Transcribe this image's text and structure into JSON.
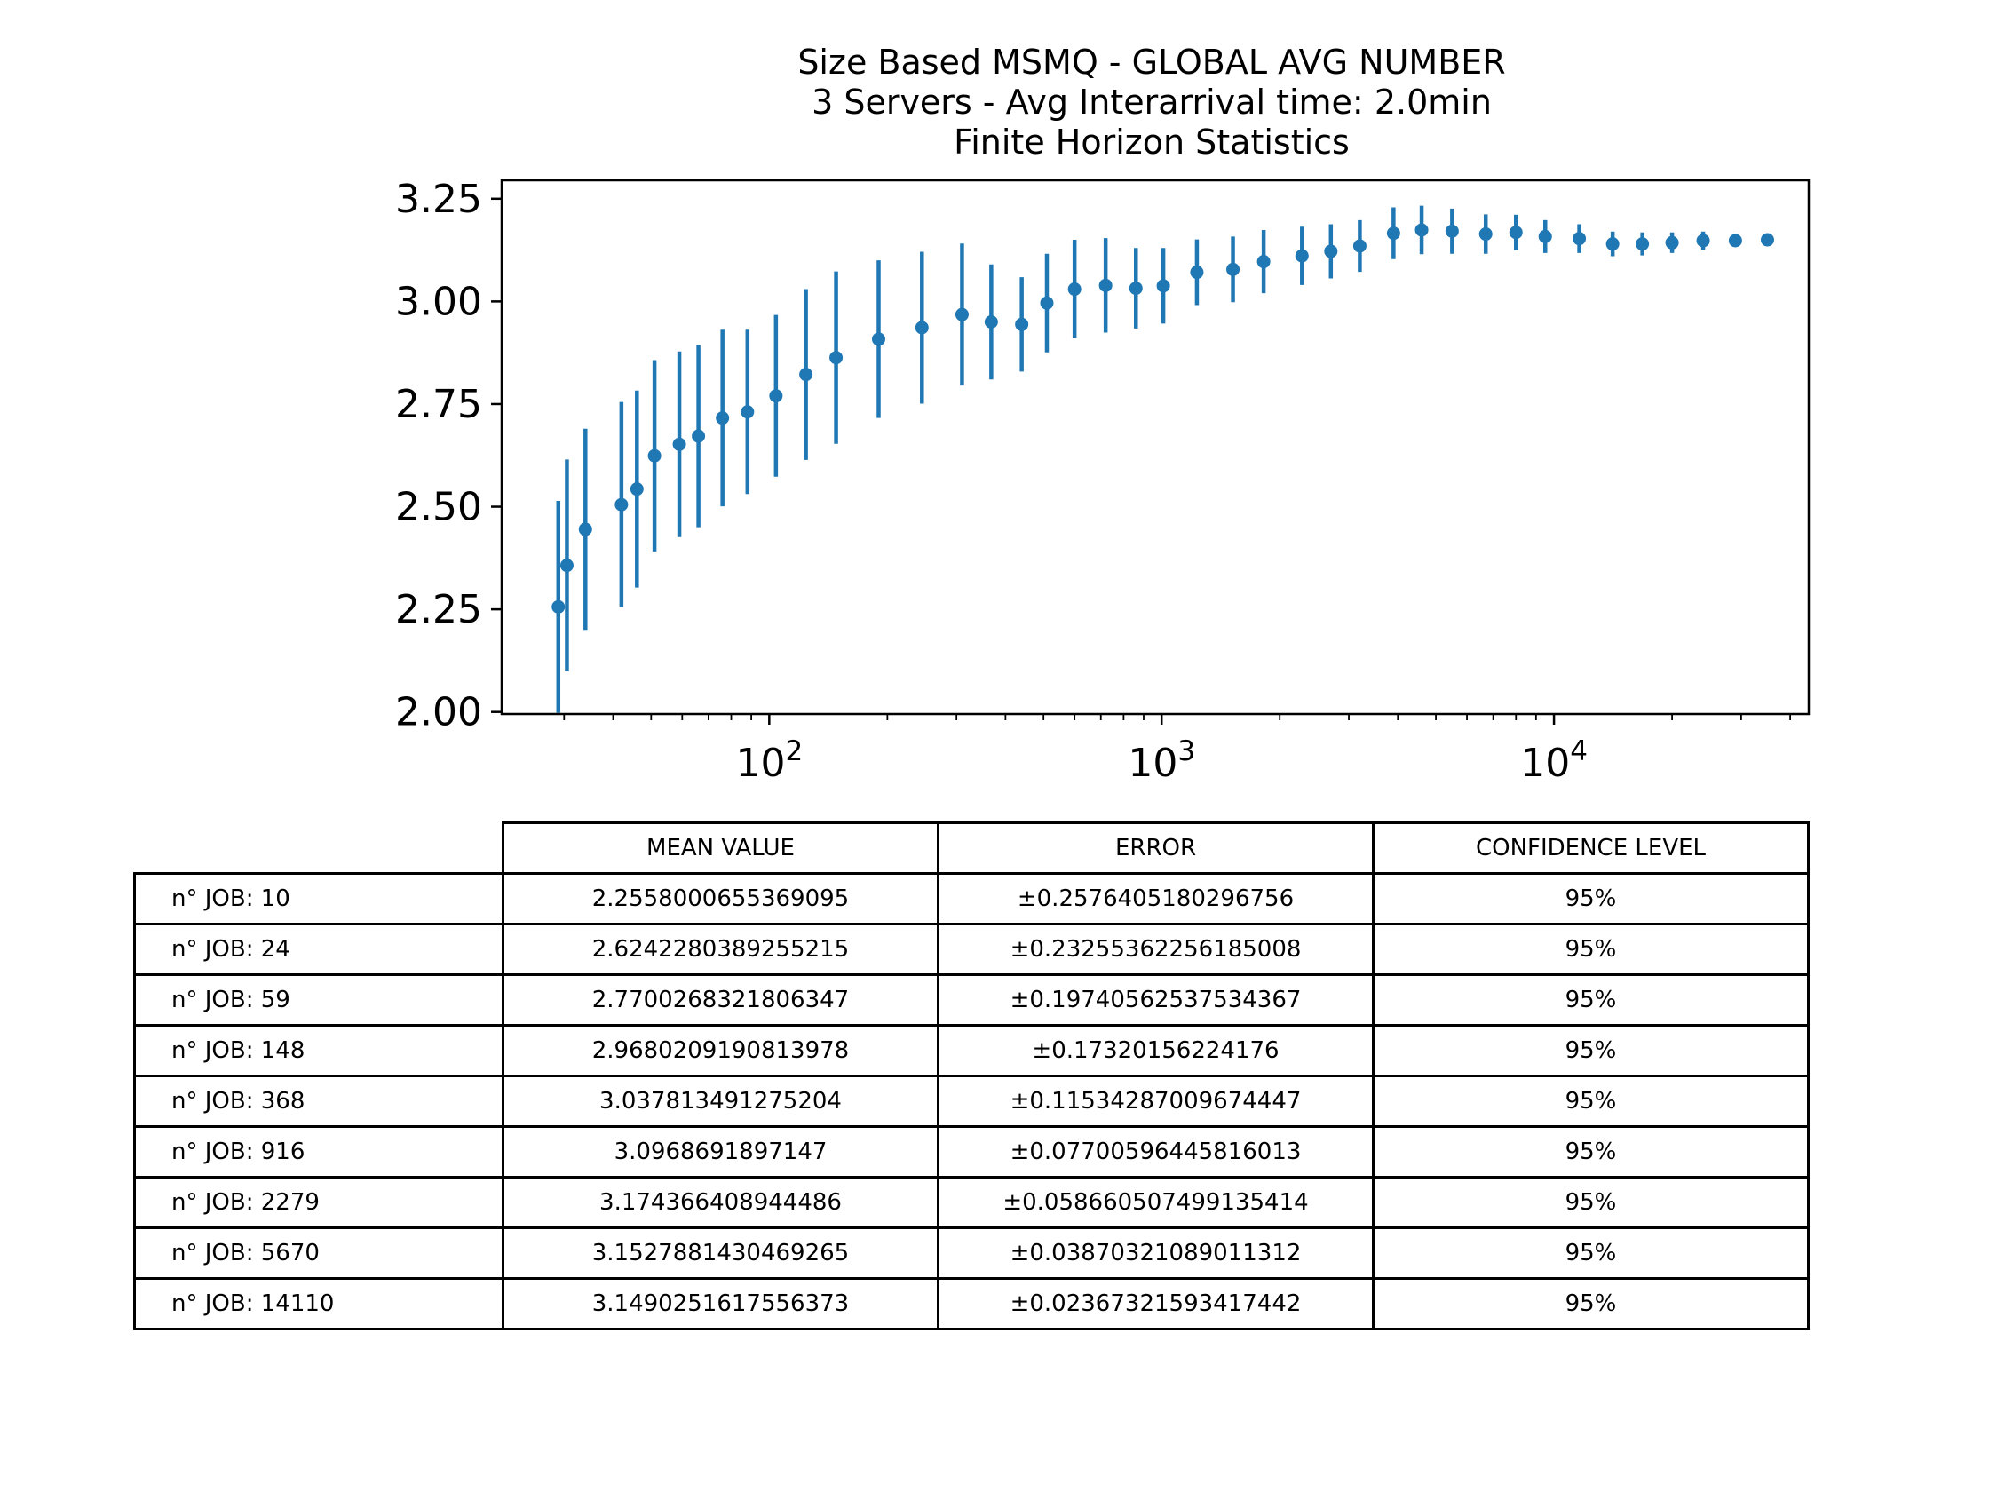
{
  "chart_data": {
    "type": "errorbar",
    "title_lines": [
      "Size Based MSMQ - GLOBAL AVG NUMBER",
      "3 Servers -  Avg Interarrival time: 2.0min",
      "Finite Horizon Statistics"
    ],
    "xscale": "log",
    "xlim": [
      20.8,
      44600
    ],
    "ylim": [
      1.995,
      3.295
    ],
    "yticks": [
      "2.00",
      "2.25",
      "2.50",
      "2.75",
      "3.00",
      "3.25"
    ],
    "xtick_labels": [
      {
        "base": "10",
        "exp": "2"
      },
      {
        "base": "10",
        "exp": "3"
      },
      {
        "base": "10",
        "exp": "4"
      }
    ],
    "color": "#1f77b4",
    "points": [
      {
        "x": 29,
        "y": 2.256,
        "err": 0.258
      },
      {
        "x": 30.5,
        "y": 2.357,
        "err": 0.258
      },
      {
        "x": 34,
        "y": 2.445,
        "err": 0.245
      },
      {
        "x": 42,
        "y": 2.505,
        "err": 0.25
      },
      {
        "x": 46,
        "y": 2.543,
        "err": 0.24
      },
      {
        "x": 51,
        "y": 2.624,
        "err": 0.233
      },
      {
        "x": 59,
        "y": 2.652,
        "err": 0.226
      },
      {
        "x": 66,
        "y": 2.672,
        "err": 0.222
      },
      {
        "x": 76,
        "y": 2.716,
        "err": 0.215
      },
      {
        "x": 88,
        "y": 2.731,
        "err": 0.2
      },
      {
        "x": 104,
        "y": 2.77,
        "err": 0.197
      },
      {
        "x": 124,
        "y": 2.822,
        "err": 0.208
      },
      {
        "x": 148,
        "y": 2.863,
        "err": 0.21
      },
      {
        "x": 190,
        "y": 2.908,
        "err": 0.192
      },
      {
        "x": 245,
        "y": 2.936,
        "err": 0.185
      },
      {
        "x": 310,
        "y": 2.968,
        "err": 0.173
      },
      {
        "x": 368,
        "y": 2.95,
        "err": 0.14
      },
      {
        "x": 440,
        "y": 2.944,
        "err": 0.115
      },
      {
        "x": 510,
        "y": 2.996,
        "err": 0.12
      },
      {
        "x": 600,
        "y": 3.03,
        "err": 0.12
      },
      {
        "x": 720,
        "y": 3.039,
        "err": 0.115
      },
      {
        "x": 860,
        "y": 3.032,
        "err": 0.098
      },
      {
        "x": 1010,
        "y": 3.038,
        "err": 0.092
      },
      {
        "x": 1230,
        "y": 3.071,
        "err": 0.08
      },
      {
        "x": 1520,
        "y": 3.078,
        "err": 0.08
      },
      {
        "x": 1820,
        "y": 3.097,
        "err": 0.077
      },
      {
        "x": 2279,
        "y": 3.111,
        "err": 0.071
      },
      {
        "x": 2700,
        "y": 3.122,
        "err": 0.066
      },
      {
        "x": 3200,
        "y": 3.135,
        "err": 0.063
      },
      {
        "x": 3900,
        "y": 3.166,
        "err": 0.063
      },
      {
        "x": 4600,
        "y": 3.174,
        "err": 0.059
      },
      {
        "x": 5500,
        "y": 3.171,
        "err": 0.055
      },
      {
        "x": 6700,
        "y": 3.164,
        "err": 0.048
      },
      {
        "x": 8000,
        "y": 3.168,
        "err": 0.043
      },
      {
        "x": 9500,
        "y": 3.158,
        "err": 0.04
      },
      {
        "x": 11600,
        "y": 3.153,
        "err": 0.035
      },
      {
        "x": 14110,
        "y": 3.14,
        "err": 0.03
      },
      {
        "x": 16800,
        "y": 3.14,
        "err": 0.028
      },
      {
        "x": 20000,
        "y": 3.143,
        "err": 0.025
      },
      {
        "x": 24000,
        "y": 3.148,
        "err": 0.022
      },
      {
        "x": 29000,
        "y": 3.148,
        "err": 0.015
      },
      {
        "x": 35000,
        "y": 3.15,
        "err": 0.012
      }
    ]
  },
  "table": {
    "headers": [
      "MEAN VALUE",
      "ERROR",
      "CONFIDENCE LEVEL"
    ],
    "rows": [
      {
        "label": "n° JOB: 10",
        "mean": "2.2558000655369095",
        "error": "±0.2576405180296756",
        "conf": "95%"
      },
      {
        "label": "n° JOB: 24",
        "mean": "2.6242280389255215",
        "error": "±0.23255362256185008",
        "conf": "95%"
      },
      {
        "label": "n° JOB: 59",
        "mean": "2.7700268321806347",
        "error": "±0.19740562537534367",
        "conf": "95%"
      },
      {
        "label": "n° JOB: 148",
        "mean": "2.9680209190813978",
        "error": "±0.17320156224176",
        "conf": "95%"
      },
      {
        "label": "n° JOB: 368",
        "mean": "3.037813491275204",
        "error": "±0.11534287009674447",
        "conf": "95%"
      },
      {
        "label": "n° JOB: 916",
        "mean": "3.0968691897147",
        "error": "±0.07700596445816013",
        "conf": "95%"
      },
      {
        "label": "n° JOB: 2279",
        "mean": "3.174366408944486",
        "error": "±0.058660507499135414",
        "conf": "95%"
      },
      {
        "label": "n° JOB: 5670",
        "mean": "3.1527881430469265",
        "error": "±0.03870321089011312",
        "conf": "95%"
      },
      {
        "label": "n° JOB: 14110",
        "mean": "3.1490251617556373",
        "error": "±0.02367321593417442",
        "conf": "95%"
      }
    ]
  }
}
